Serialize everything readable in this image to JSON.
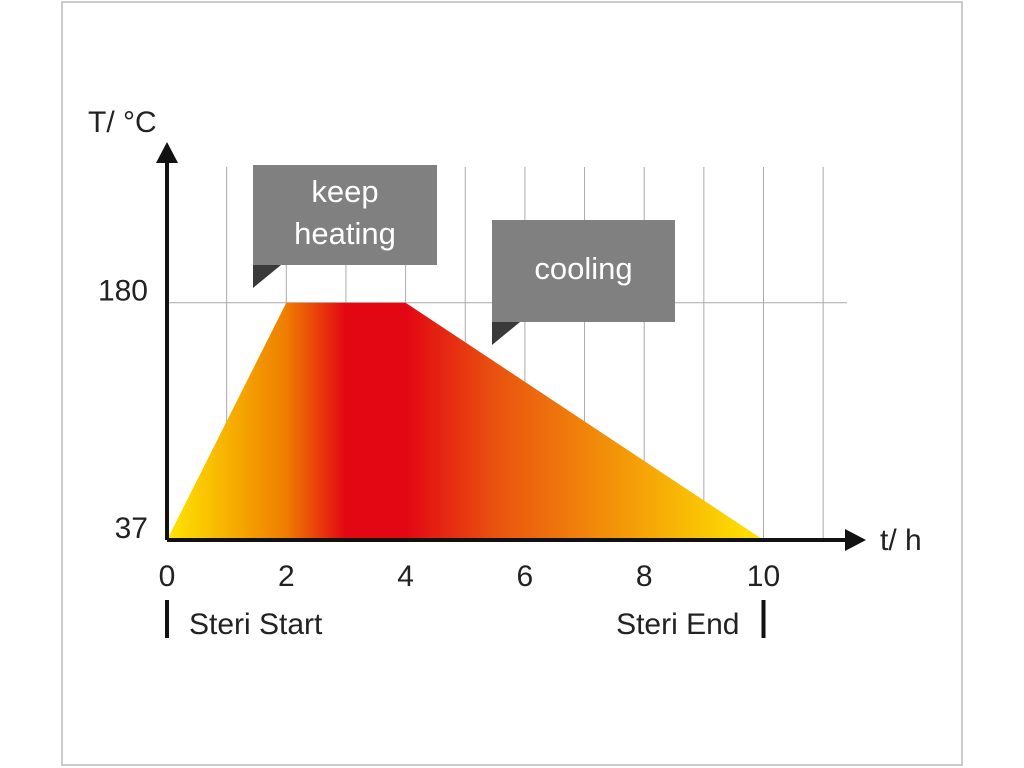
{
  "chart_data": {
    "type": "area",
    "ylabel": "T/ °C",
    "xlabel": "t/ h",
    "x": [
      0,
      2,
      4,
      10
    ],
    "values": [
      37,
      180,
      180,
      37
    ],
    "xlim": [
      0,
      11.4
    ],
    "ylim": [
      37,
      260
    ],
    "xticks": [
      0,
      2,
      4,
      6,
      8,
      10
    ],
    "yticks": [
      37,
      180
    ],
    "xgrid": [
      1,
      2,
      3,
      4,
      5,
      6,
      7,
      8,
      9,
      10,
      11
    ],
    "grid": true,
    "gradient_colors": [
      "#ffe600",
      "#ef7d00",
      "#e30613",
      "#e30613",
      "#e95210",
      "#ffe600"
    ],
    "annotations": [
      {
        "lines": [
          "keep",
          "heating"
        ]
      },
      {
        "lines": [
          "cooling"
        ]
      }
    ],
    "markers": [
      {
        "label": "Steri Start",
        "x": 0
      },
      {
        "label": "Steri End",
        "x": 10
      }
    ]
  }
}
